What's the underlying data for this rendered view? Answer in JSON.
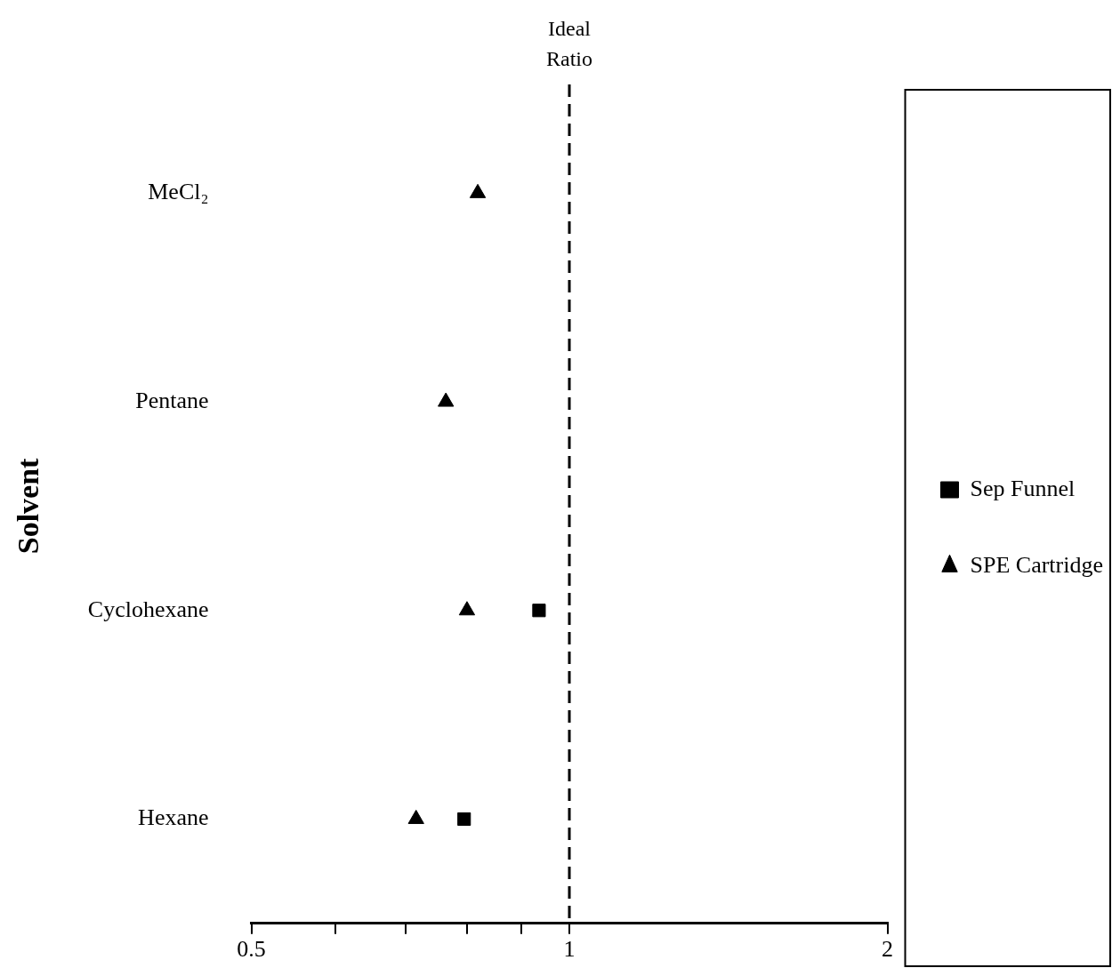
{
  "chart_data": {
    "type": "scatter",
    "orientation": "horizontal",
    "ylabel": "Solvent",
    "categories": [
      "MeCl₂",
      "Pentane",
      "Cyclohexane",
      "Hexane"
    ],
    "series": [
      {
        "name": "Sep Funnel",
        "color": "#000000",
        "marker": "square",
        "values": [
          null,
          null,
          0.936,
          0.795
        ]
      },
      {
        "name": "SPE Cartridge",
        "color": "#000000",
        "marker": "triangle",
        "values": [
          0.819,
          0.764,
          0.8,
          0.716
        ]
      }
    ],
    "log": "x",
    "xlim": [
      0.5,
      2
    ],
    "xticks": [
      0.5,
      {
        "value": 0.6,
        "label": null
      },
      {
        "value": 0.7,
        "label": null
      },
      {
        "value": 0.8,
        "label": null
      },
      {
        "value": 0.9,
        "label": null
      },
      1,
      2
    ],
    "ref_lines": [
      {
        "axis": "x",
        "value": 1,
        "label": "Ideal Ratio",
        "line_style": "dashed",
        "color": "#000000"
      }
    ],
    "grid": false,
    "legend": "right"
  }
}
